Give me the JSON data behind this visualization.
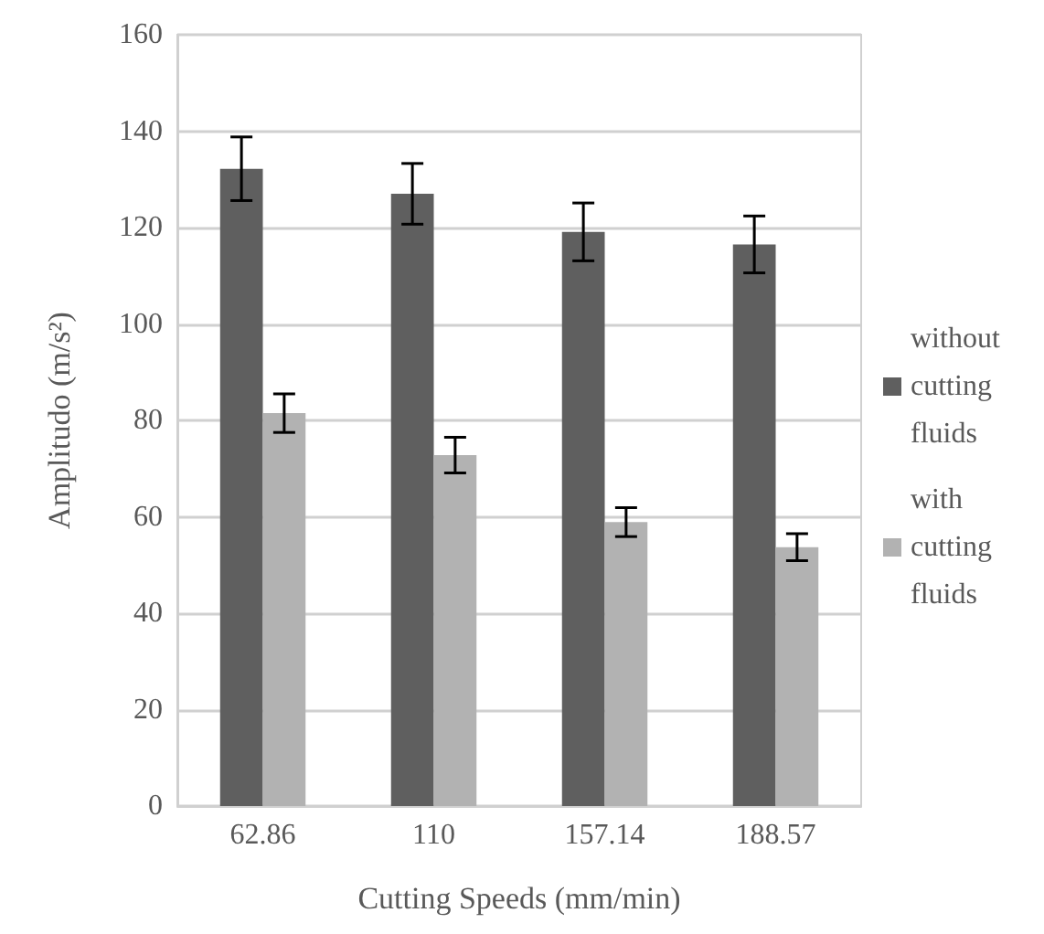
{
  "chart_data": {
    "type": "bar",
    "xlabel": "Cutting Speeds (mm/min)",
    "ylabel": "Amplitudo (m/s²)",
    "categories": [
      "62.86",
      "110",
      "157.14",
      "188.57"
    ],
    "series": [
      {
        "name": "without cutting fluids",
        "color": "#5f5f5f",
        "values": [
          132.2,
          127.0,
          119.1,
          116.5
        ],
        "errors": [
          6.6,
          6.3,
          6.0,
          5.9
        ]
      },
      {
        "name": "with cutting fluids",
        "color": "#b2b2b2",
        "values": [
          81.5,
          72.8,
          58.9,
          53.7
        ],
        "errors": [
          4.0,
          3.7,
          3.0,
          2.8
        ]
      }
    ],
    "ylim": [
      0,
      160
    ],
    "yticks": [
      0,
      20,
      40,
      60,
      80,
      100,
      120,
      140,
      160
    ],
    "grid": "y",
    "legend": "right"
  }
}
